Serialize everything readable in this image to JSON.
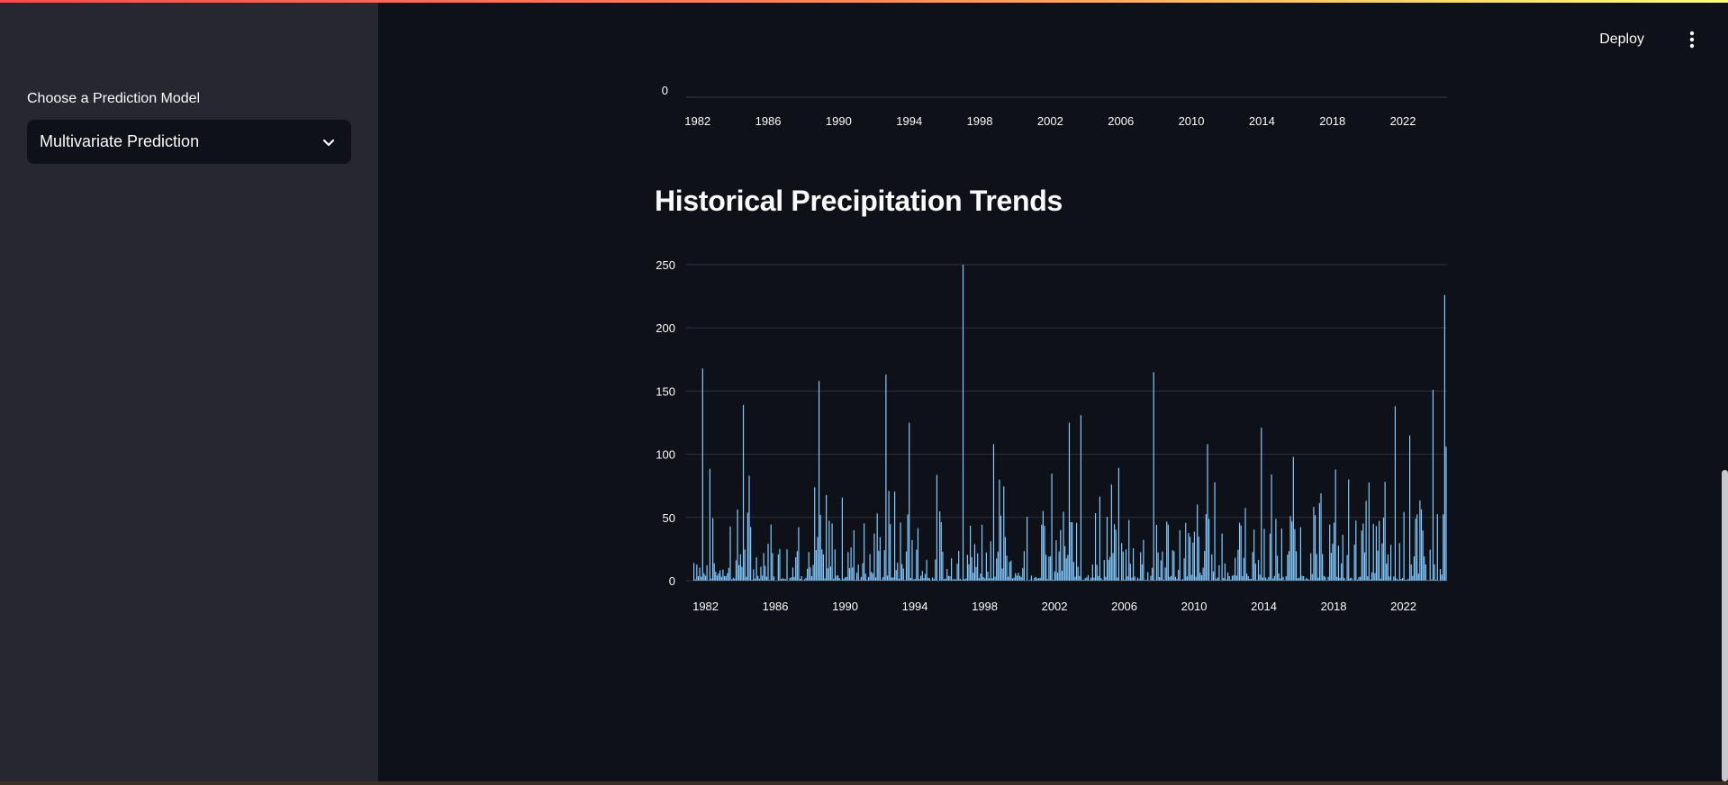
{
  "header": {
    "deploy_label": "Deploy",
    "menu_icon": "kebab-menu-icon"
  },
  "sidebar": {
    "model_label": "Choose a Prediction Model",
    "model_select": {
      "value": "Multivariate Prediction",
      "icon": "chevron-down-icon"
    }
  },
  "main": {
    "section_title": "Historical Precipitation Trends"
  },
  "colors": {
    "accent": "#ff4b4b",
    "bar": "#83c9ff",
    "sidebar_bg": "#262730",
    "main_bg": "#0e1117"
  },
  "chart_data": [
    {
      "type": "bar",
      "title": "",
      "xlabel": "",
      "ylabel": "",
      "y_ticks": [
        "0"
      ],
      "x_ticks": [
        "1982",
        "1986",
        "1990",
        "1994",
        "1998",
        "2002",
        "2006",
        "2010",
        "2014",
        "2018",
        "2022"
      ],
      "note": "partially visible (scrolled), only the baseline and x-axis are shown"
    },
    {
      "type": "bar",
      "title": "",
      "xlabel": "",
      "ylabel": "",
      "ylim": [
        0,
        260
      ],
      "y_ticks": [
        "0",
        "50",
        "100",
        "150",
        "200",
        "250"
      ],
      "x_ticks": [
        "1982",
        "1986",
        "1990",
        "1994",
        "1998",
        "2002",
        "2006",
        "2010",
        "2014",
        "2018",
        "2022"
      ],
      "x_start": 1981.3,
      "x_end": 2024.5,
      "grid": true,
      "peaks": [
        {
          "x": 1981.8,
          "y": 168
        },
        {
          "x": 1984.1,
          "y": 139
        },
        {
          "x": 1988.5,
          "y": 158
        },
        {
          "x": 1992.3,
          "y": 163
        },
        {
          "x": 1993.6,
          "y": 125
        },
        {
          "x": 1996.7,
          "y": 250
        },
        {
          "x": 1998.5,
          "y": 108
        },
        {
          "x": 2002.8,
          "y": 125
        },
        {
          "x": 2003.5,
          "y": 131
        },
        {
          "x": 2007.6,
          "y": 165
        },
        {
          "x": 2010.7,
          "y": 108
        },
        {
          "x": 2013.8,
          "y": 121
        },
        {
          "x": 2015.6,
          "y": 98
        },
        {
          "x": 2021.5,
          "y": 138
        },
        {
          "x": 2022.3,
          "y": 115
        },
        {
          "x": 2023.6,
          "y": 151
        },
        {
          "x": 2024.3,
          "y": 226
        },
        {
          "x": 2024.4,
          "y": 106
        }
      ]
    }
  ]
}
